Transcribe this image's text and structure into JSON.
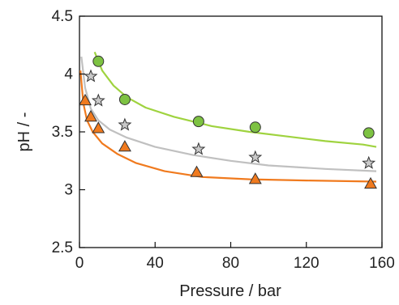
{
  "chart_data": {
    "type": "scatter",
    "xlabel": "Pressure / bar",
    "ylabel": "pH / -",
    "xlim": [
      0,
      160
    ],
    "ylim": [
      2.5,
      4.5
    ],
    "xticks": [
      "0",
      "40",
      "80",
      "120",
      "160"
    ],
    "yticks": [
      "2.5",
      "3",
      "3.5",
      "4",
      "4.5"
    ],
    "xtick_values": [
      0,
      40,
      80,
      120,
      160
    ],
    "ytick_values": [
      2.5,
      3,
      3.5,
      4,
      4.5
    ],
    "grid": false,
    "legend": "none",
    "series": [
      {
        "marker": "circle",
        "color": "#7dc242",
        "line_color": "#9fd33f",
        "x": [
          10,
          24,
          63,
          93,
          153
        ],
        "y": [
          4.11,
          3.78,
          3.59,
          3.54,
          3.49
        ],
        "fit_x": [
          8,
          12,
          18,
          25,
          35,
          50,
          70,
          90,
          110,
          130,
          150,
          157
        ],
        "fit_y": [
          4.19,
          4.03,
          3.9,
          3.8,
          3.71,
          3.63,
          3.55,
          3.5,
          3.46,
          3.42,
          3.39,
          3.37
        ]
      },
      {
        "marker": "star",
        "color": "#c9c9c9",
        "line_color": "#c0c0c0",
        "x": [
          6,
          10,
          24,
          63,
          93,
          153
        ],
        "y": [
          3.98,
          3.77,
          3.56,
          3.35,
          3.28,
          3.23
        ],
        "fit_x": [
          1,
          3,
          6,
          10,
          16,
          25,
          40,
          60,
          80,
          100,
          130,
          157
        ],
        "fit_y": [
          4.15,
          3.88,
          3.7,
          3.6,
          3.52,
          3.45,
          3.37,
          3.3,
          3.25,
          3.21,
          3.18,
          3.16
        ]
      },
      {
        "marker": "triangle",
        "color": "#f07a1e",
        "line_color": "#f07a1e",
        "x": [
          3,
          6,
          10,
          24,
          62,
          93,
          154
        ],
        "y": [
          3.77,
          3.63,
          3.53,
          3.37,
          3.15,
          3.09,
          3.05
        ],
        "fit_x": [
          0.5,
          2,
          4,
          7,
          12,
          20,
          30,
          45,
          65,
          90,
          120,
          157
        ],
        "fit_y": [
          4.03,
          3.75,
          3.6,
          3.5,
          3.4,
          3.31,
          3.23,
          3.16,
          3.11,
          3.09,
          3.08,
          3.07
        ]
      }
    ]
  }
}
